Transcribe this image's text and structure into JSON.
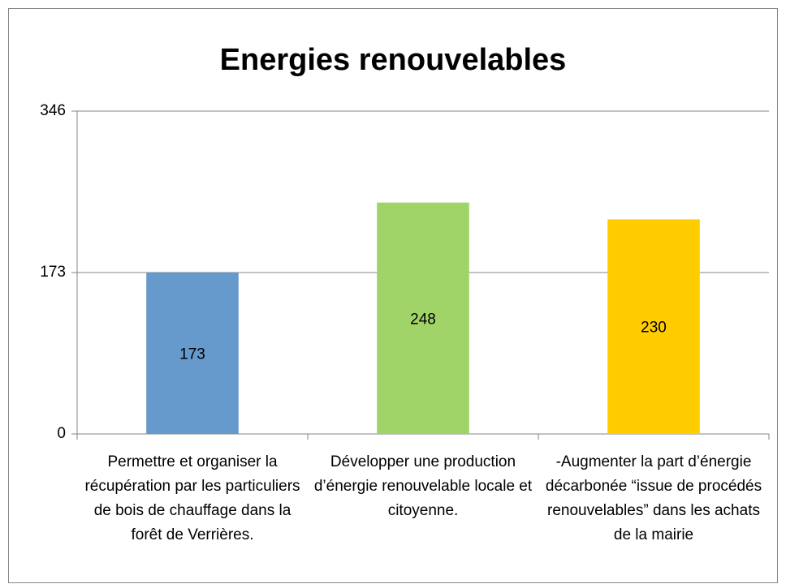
{
  "chart_data": {
    "type": "bar",
    "title": "Energies renouvelables",
    "categories": [
      "Permettre et organiser la récupération par les particuliers de bois de chauffage dans la forêt de Verrières.",
      "Développer une production d’énergie renouvelable locale et citoyenne.",
      "-Augmenter la part d’énergie décarbonée “issue de procédés renouvelables” dans les achats de la mairie"
    ],
    "values": [
      173,
      248,
      230
    ],
    "colors": [
      "#6699cc",
      "#a0d468",
      "#ffcc00"
    ],
    "ylim": [
      0,
      346
    ],
    "yticks": [
      0,
      173,
      346
    ],
    "grid": true
  }
}
